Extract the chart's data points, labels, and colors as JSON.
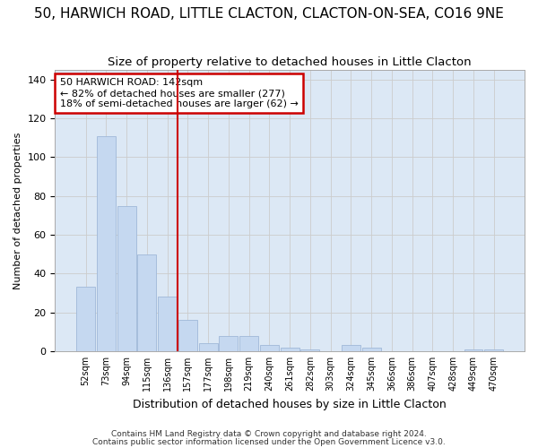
{
  "title1": "50, HARWICH ROAD, LITTLE CLACTON, CLACTON-ON-SEA, CO16 9NE",
  "title2": "Size of property relative to detached houses in Little Clacton",
  "xlabel": "Distribution of detached houses by size in Little Clacton",
  "ylabel": "Number of detached properties",
  "categories": [
    "52sqm",
    "73sqm",
    "94sqm",
    "115sqm",
    "136sqm",
    "157sqm",
    "177sqm",
    "198sqm",
    "219sqm",
    "240sqm",
    "261sqm",
    "282sqm",
    "303sqm",
    "324sqm",
    "345sqm",
    "366sqm",
    "386sqm",
    "407sqm",
    "428sqm",
    "449sqm",
    "470sqm"
  ],
  "values": [
    33,
    111,
    75,
    50,
    28,
    16,
    4,
    8,
    8,
    3,
    2,
    1,
    0,
    3,
    2,
    0,
    0,
    0,
    0,
    1,
    1
  ],
  "bar_color": "#c5d8f0",
  "bar_edge_color": "#a0b8d8",
  "vline_x": 4.5,
  "annotation_line1": "50 HARWICH ROAD: 142sqm",
  "annotation_line2": "← 82% of detached houses are smaller (277)",
  "annotation_line3": "18% of semi-detached houses are larger (62) →",
  "annotation_box_color": "#ffffff",
  "annotation_box_edge_color": "#cc0000",
  "vline_color": "#cc0000",
  "grid_color": "#cccccc",
  "fig_bg_color": "#ffffff",
  "plot_bg_color": "#dce8f5",
  "footer1": "Contains HM Land Registry data © Crown copyright and database right 2024.",
  "footer2": "Contains public sector information licensed under the Open Government Licence v3.0.",
  "ylim": [
    0,
    145
  ],
  "title1_fontsize": 11,
  "title2_fontsize": 9.5
}
